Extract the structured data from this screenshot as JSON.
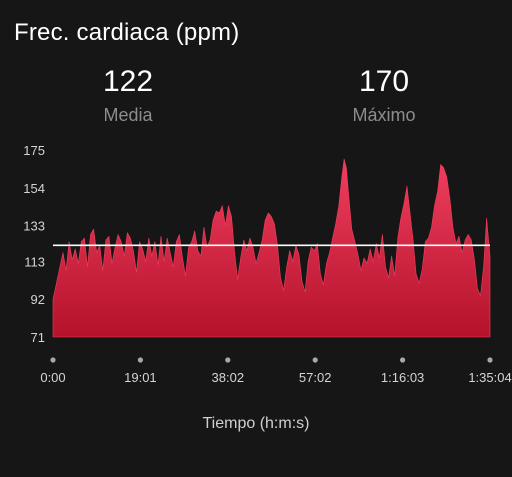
{
  "header": {
    "title": "Frec. cardiaca (ppm)"
  },
  "stats": {
    "average": {
      "value": "122",
      "label": "Media"
    },
    "maximum": {
      "value": "170",
      "label": "Máximo"
    }
  },
  "colors": {
    "background": "#161616",
    "area_top": "#ef3f5e",
    "area_bottom": "#b5122c",
    "reference_line": "#ffffff",
    "tick_dot": "#a8a8a8"
  },
  "chart_data": {
    "type": "area",
    "xlabel": "Tiempo (h:m:s)",
    "ylabel": "",
    "ylim": [
      71,
      175
    ],
    "xlim": [
      0,
      5704
    ],
    "x_unit": "seconds",
    "y_ticks": [
      175,
      154,
      133,
      113,
      92,
      71
    ],
    "x_ticks": [
      {
        "value": 0,
        "label": "0:00"
      },
      {
        "value": 1141,
        "label": "19:01"
      },
      {
        "value": 2282,
        "label": "38:02"
      },
      {
        "value": 3422,
        "label": "57:02"
      },
      {
        "value": 4563,
        "label": "1:16:03"
      },
      {
        "value": 5704,
        "label": "1:35:04"
      }
    ],
    "reference_line": {
      "value": 122,
      "label": "Media"
    },
    "series": [
      {
        "points": [
          [
            0,
            92
          ],
          [
            40,
            100
          ],
          [
            90,
            110
          ],
          [
            130,
            118
          ],
          [
            170,
            108
          ],
          [
            210,
            124
          ],
          [
            250,
            114
          ],
          [
            290,
            120
          ],
          [
            330,
            112
          ],
          [
            370,
            124
          ],
          [
            410,
            126
          ],
          [
            450,
            110
          ],
          [
            490,
            128
          ],
          [
            530,
            131
          ],
          [
            570,
            118
          ],
          [
            610,
            122
          ],
          [
            650,
            108
          ],
          [
            690,
            125
          ],
          [
            730,
            127
          ],
          [
            770,
            112
          ],
          [
            810,
            121
          ],
          [
            850,
            128
          ],
          [
            890,
            124
          ],
          [
            930,
            116
          ],
          [
            970,
            129
          ],
          [
            1010,
            126
          ],
          [
            1050,
            119
          ],
          [
            1090,
            107
          ],
          [
            1130,
            124
          ],
          [
            1170,
            120
          ],
          [
            1210,
            113
          ],
          [
            1250,
            126
          ],
          [
            1290,
            116
          ],
          [
            1330,
            124
          ],
          [
            1370,
            111
          ],
          [
            1410,
            127
          ],
          [
            1450,
            113
          ],
          [
            1490,
            126
          ],
          [
            1530,
            118
          ],
          [
            1570,
            110
          ],
          [
            1610,
            124
          ],
          [
            1650,
            128
          ],
          [
            1690,
            115
          ],
          [
            1730,
            105
          ],
          [
            1770,
            121
          ],
          [
            1810,
            124
          ],
          [
            1850,
            130
          ],
          [
            1890,
            119
          ],
          [
            1930,
            116
          ],
          [
            1970,
            132
          ],
          [
            2010,
            121
          ],
          [
            2050,
            125
          ],
          [
            2090,
            136
          ],
          [
            2130,
            141
          ],
          [
            2170,
            140
          ],
          [
            2210,
            144
          ],
          [
            2250,
            133
          ],
          [
            2290,
            144
          ],
          [
            2330,
            138
          ],
          [
            2370,
            118
          ],
          [
            2410,
            103
          ],
          [
            2450,
            115
          ],
          [
            2490,
            125
          ],
          [
            2530,
            119
          ],
          [
            2570,
            126
          ],
          [
            2610,
            121
          ],
          [
            2650,
            112
          ],
          [
            2690,
            118
          ],
          [
            2730,
            125
          ],
          [
            2770,
            136
          ],
          [
            2810,
            140
          ],
          [
            2850,
            138
          ],
          [
            2890,
            134
          ],
          [
            2930,
            122
          ],
          [
            2970,
            104
          ],
          [
            3010,
            97
          ],
          [
            3050,
            110
          ],
          [
            3090,
            119
          ],
          [
            3130,
            113
          ],
          [
            3170,
            122
          ],
          [
            3210,
            117
          ],
          [
            3250,
            102
          ],
          [
            3290,
            96
          ],
          [
            3330,
            113
          ],
          [
            3370,
            121
          ],
          [
            3410,
            119
          ],
          [
            3450,
            123
          ],
          [
            3490,
            106
          ],
          [
            3530,
            100
          ],
          [
            3570,
            112
          ],
          [
            3610,
            118
          ],
          [
            3650,
            126
          ],
          [
            3690,
            134
          ],
          [
            3730,
            144
          ],
          [
            3770,
            160
          ],
          [
            3800,
            170
          ],
          [
            3830,
            165
          ],
          [
            3860,
            150
          ],
          [
            3900,
            131
          ],
          [
            3940,
            124
          ],
          [
            3980,
            117
          ],
          [
            4020,
            108
          ],
          [
            4060,
            115
          ],
          [
            4100,
            112
          ],
          [
            4140,
            120
          ],
          [
            4180,
            113
          ],
          [
            4220,
            123
          ],
          [
            4260,
            115
          ],
          [
            4300,
            128
          ],
          [
            4340,
            110
          ],
          [
            4380,
            104
          ],
          [
            4420,
            116
          ],
          [
            4460,
            105
          ],
          [
            4500,
            126
          ],
          [
            4540,
            137
          ],
          [
            4580,
            145
          ],
          [
            4620,
            155
          ],
          [
            4660,
            140
          ],
          [
            4700,
            125
          ],
          [
            4740,
            106
          ],
          [
            4780,
            101
          ],
          [
            4820,
            109
          ],
          [
            4860,
            124
          ],
          [
            4900,
            126
          ],
          [
            4940,
            132
          ],
          [
            4980,
            144
          ],
          [
            5020,
            152
          ],
          [
            5060,
            167
          ],
          [
            5100,
            165
          ],
          [
            5140,
            160
          ],
          [
            5180,
            148
          ],
          [
            5220,
            132
          ],
          [
            5260,
            123
          ],
          [
            5300,
            127
          ],
          [
            5340,
            118
          ],
          [
            5380,
            125
          ],
          [
            5420,
            128
          ],
          [
            5460,
            125
          ],
          [
            5500,
            114
          ],
          [
            5540,
            98
          ],
          [
            5580,
            94
          ],
          [
            5620,
            110
          ],
          [
            5660,
            137
          ],
          [
            5704,
            116
          ]
        ]
      }
    ]
  }
}
